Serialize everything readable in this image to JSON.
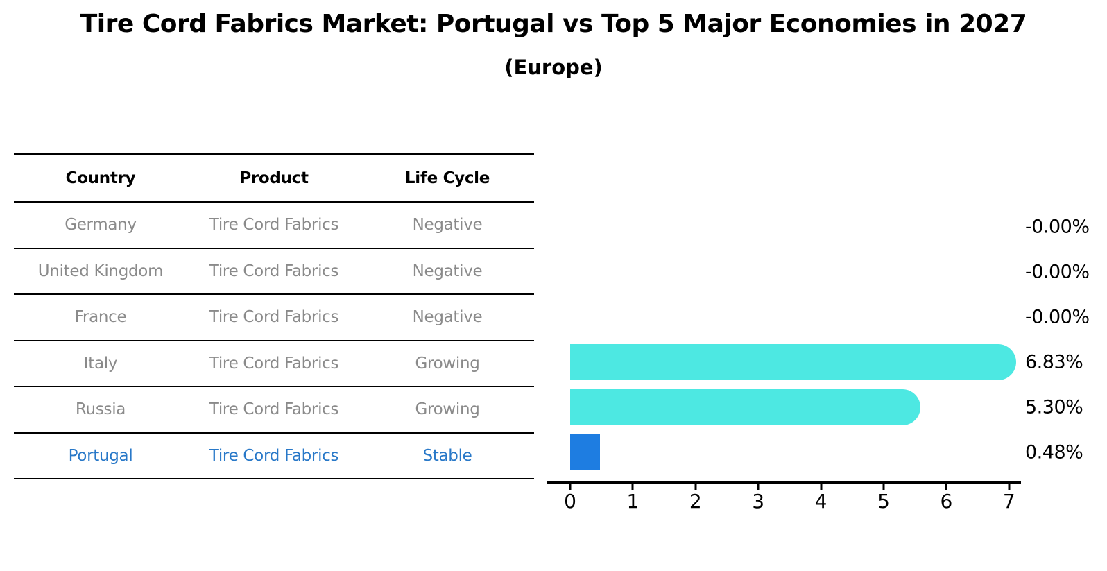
{
  "title": "Tire Cord Fabrics Market: Portugal vs Top 5 Major Economies in 2027",
  "subtitle": "(Europe)",
  "table": {
    "headers": [
      "Country",
      "Product",
      "Life Cycle"
    ],
    "rows": [
      {
        "country": "Germany",
        "product": "Tire Cord Fabrics",
        "life_cycle": "Negative",
        "highlight": false
      },
      {
        "country": "United Kingdom",
        "product": "Tire Cord Fabrics",
        "life_cycle": "Negative",
        "highlight": false
      },
      {
        "country": "France",
        "product": "Tire Cord Fabrics",
        "life_cycle": "Negative",
        "highlight": false
      },
      {
        "country": "Italy",
        "product": "Tire Cord Fabrics",
        "life_cycle": "Growing",
        "highlight": false
      },
      {
        "country": "Russia",
        "product": "Tire Cord Fabrics",
        "life_cycle": "Growing",
        "highlight": false
      },
      {
        "country": "Portugal",
        "product": "Tire Cord Fabrics",
        "life_cycle": "Stable",
        "highlight": true
      }
    ]
  },
  "chart_data": {
    "type": "bar",
    "orientation": "horizontal",
    "title": "Tire Cord Fabrics Market: Portugal vs Top 5 Major Economies in 2027 (Europe)",
    "categories": [
      "Germany",
      "United Kingdom",
      "France",
      "Italy",
      "Russia",
      "Portugal"
    ],
    "values": [
      -0.0,
      -0.0,
      -0.0,
      6.83,
      5.3,
      0.48
    ],
    "value_labels": [
      "-0.00%",
      "-0.00%",
      "-0.00%",
      "6.83%",
      "5.30%",
      "0.48%"
    ],
    "highlight_category": "Portugal",
    "x_ticks": [
      "0",
      "1",
      "2",
      "3",
      "4",
      "5",
      "6",
      "7"
    ],
    "xlim": [
      0,
      7.2
    ],
    "xlabel": "",
    "ylabel": "",
    "grid": false,
    "legend": false
  },
  "colors": {
    "bar_default": "#4DE8E2",
    "bar_highlight": "#1E7DE1",
    "highlight_text": "#2878C8",
    "table_text": "#8A8A8A",
    "heading_text": "#000000",
    "rule": "#000000"
  }
}
